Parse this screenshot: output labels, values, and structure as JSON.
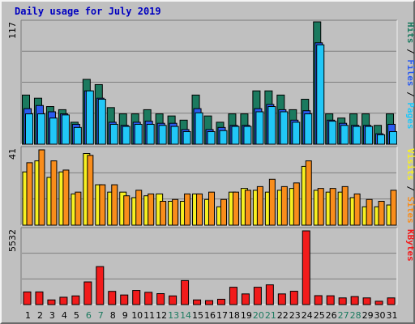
{
  "title": "Daily usage for July 2019",
  "chart_data": {
    "type": "bar",
    "title": "Daily usage for July 2019",
    "x": [
      "1",
      "2",
      "3",
      "4",
      "5",
      "6",
      "7",
      "8",
      "9",
      "10",
      "11",
      "12",
      "13",
      "14",
      "15",
      "16",
      "17",
      "18",
      "19",
      "20",
      "21",
      "22",
      "23",
      "24",
      "25",
      "26",
      "27",
      "28",
      "29",
      "30",
      "31"
    ],
    "weekend_days": [
      "6",
      "7",
      "13",
      "14",
      "20",
      "21",
      "27",
      "28"
    ],
    "colors": {
      "hits": "#1b7a5f",
      "files": "#2a5bf0",
      "pages": "#21c7f7",
      "visits": "#f7f021",
      "sites": "#f98d1b",
      "kbytes": "#f21b1b",
      "weekday_label": "#000000",
      "weekend_label": "#1b7a5f",
      "background": "#c0c0c0",
      "title": "#0000c0"
    },
    "panels": [
      {
        "name": "usage",
        "ymax_label": "117",
        "ymax": 117,
        "legend": [
          {
            "text": "Pages",
            "color": "#21c7f7"
          },
          {
            "text": "Files",
            "color": "#2a5bf0"
          },
          {
            "text": "Hits",
            "color": "#1b7a5f"
          }
        ],
        "series": [
          {
            "name": "Hits",
            "values": [
              47,
              44,
              36,
              33,
              21,
              62,
              57,
              35,
              29,
              29,
              33,
              29,
              27,
              23,
              47,
              27,
              21,
              29,
              29,
              51,
              51,
              47,
              33,
              43,
              117,
              29,
              25,
              29,
              29,
              18,
              29
            ]
          },
          {
            "name": "Files",
            "values": [
              34,
              37,
              31,
              29,
              19,
              51,
              44,
              21,
              18,
              21,
              22,
              20,
              20,
              14,
              34,
              14,
              16,
              18,
              18,
              34,
              38,
              33,
              23,
              32,
              97,
              23,
              20,
              18,
              18,
              10,
              19
            ]
          },
          {
            "name": "Pages",
            "values": [
              29,
              29,
              25,
              28,
              16,
              51,
              43,
              19,
              17,
              19,
              19,
              18,
              17,
              12,
              30,
              12,
              13,
              17,
              17,
              31,
              36,
              31,
              21,
              29,
              95,
              22,
              18,
              17,
              17,
              9,
              12
            ]
          }
        ]
      },
      {
        "name": "visitors",
        "ymax_label": "41",
        "ymax": 41,
        "legend": [
          {
            "text": "Sites",
            "color": "#f98d1b"
          },
          {
            "text": "Visits",
            "color": "#f7f021"
          }
        ],
        "series": [
          {
            "name": "Visits",
            "values": [
              29,
              35,
              26,
              29,
              17,
              39,
              22,
              18,
              18,
              15,
              16,
              17,
              13,
              13,
              17,
              14,
              10,
              18,
              20,
              19,
              18,
              19,
              20,
              32,
              19,
              18,
              18,
              15,
              10,
              10,
              11
            ]
          },
          {
            "name": "Sites",
            "values": [
              34,
              41,
              35,
              30,
              18,
              38,
              22,
              22,
              16,
              19,
              17,
              13,
              14,
              17,
              17,
              18,
              14,
              18,
              19,
              21,
              25,
              21,
              23,
              35,
              20,
              20,
              21,
              17,
              14,
              13,
              19
            ]
          }
        ]
      },
      {
        "name": "kbytes",
        "ymax_label": "5532",
        "ymax": 5532,
        "legend": [
          {
            "text": "KBytes",
            "color": "#f21b1b"
          }
        ],
        "series": [
          {
            "name": "KBytes",
            "values": [
              950,
              950,
              350,
              550,
              650,
              1700,
              2850,
              990,
              720,
              1060,
              920,
              820,
              650,
              1800,
              350,
              300,
              400,
              1300,
              800,
              1300,
              1480,
              800,
              1000,
              5532,
              670,
              660,
              500,
              600,
              500,
              250,
              500
            ]
          }
        ]
      }
    ]
  }
}
